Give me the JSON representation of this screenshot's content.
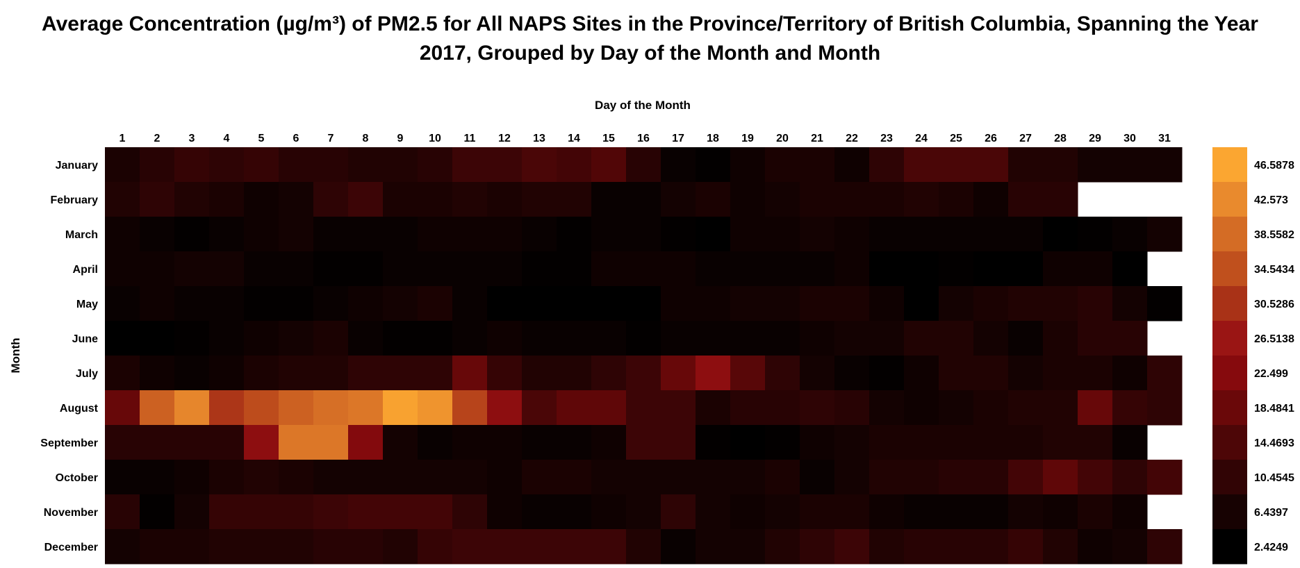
{
  "chart_data": {
    "type": "heatmap",
    "title_line1": "Average Concentration (µg/m³) of PM2.5 for All NAPS Sites in the Province/Territory of British Columbia, Spanning the Year",
    "title_line2": "2017, Grouped by Day of the Month and Month",
    "xlabel": "Day of the Month",
    "ylabel": "Month",
    "x_categories": [
      "1",
      "2",
      "3",
      "4",
      "5",
      "6",
      "7",
      "8",
      "9",
      "10",
      "11",
      "12",
      "13",
      "14",
      "15",
      "16",
      "17",
      "18",
      "19",
      "20",
      "21",
      "22",
      "23",
      "24",
      "25",
      "26",
      "27",
      "28",
      "29",
      "30",
      "31"
    ],
    "y_categories": [
      "January",
      "February",
      "March",
      "April",
      "May",
      "June",
      "July",
      "August",
      "September",
      "October",
      "November",
      "December"
    ],
    "vmin": 2.4249,
    "vmax": 46.5878,
    "colorbar_ticks": [
      "46.5878",
      "42.573",
      "38.5582",
      "34.5434",
      "30.5286",
      "26.5138",
      "22.499",
      "18.4841",
      "14.4693",
      "10.4545",
      "6.4397",
      "2.4249"
    ],
    "colorbar_colors": [
      "#fba631",
      "#e98a2d",
      "#d46c25",
      "#c0501d",
      "#a93217",
      "#9a1514",
      "#860a0d",
      "#6a0809",
      "#4d0607",
      "#310405",
      "#170202",
      "#000000"
    ],
    "values": [
      [
        7,
        9,
        11,
        10,
        11,
        9,
        9,
        8,
        8,
        9,
        12,
        12,
        14,
        13,
        15,
        9,
        4,
        3,
        5,
        7,
        7,
        5,
        10,
        14,
        14,
        14,
        8,
        8,
        6,
        6,
        6
      ],
      [
        8,
        10,
        8,
        7,
        5,
        6,
        10,
        12,
        7,
        7,
        8,
        7,
        8,
        8,
        4,
        4,
        6,
        7,
        5,
        6,
        7,
        7,
        7,
        8,
        7,
        5,
        9,
        9,
        null,
        null,
        null
      ],
      [
        5,
        4,
        3,
        4,
        5,
        6,
        4,
        4,
        4,
        5,
        5,
        5,
        4,
        3,
        4,
        4,
        3,
        2,
        5,
        5,
        6,
        5,
        4,
        4,
        4,
        4,
        4,
        2,
        3,
        4,
        6
      ],
      [
        5,
        5,
        6,
        6,
        4,
        4,
        3,
        3,
        4,
        4,
        4,
        4,
        3,
        3,
        5,
        5,
        5,
        4,
        4,
        4,
        4,
        5,
        2,
        2,
        3,
        2,
        2,
        5,
        5,
        1,
        null
      ],
      [
        4,
        5,
        4,
        4,
        3,
        3,
        4,
        5,
        6,
        7,
        4,
        2,
        2,
        2,
        2,
        2,
        5,
        5,
        6,
        6,
        7,
        7,
        5,
        2,
        6,
        7,
        8,
        8,
        9,
        6,
        3
      ],
      [
        2,
        2,
        3,
        4,
        5,
        6,
        7,
        4,
        3,
        3,
        4,
        5,
        4,
        4,
        4,
        3,
        4,
        4,
        4,
        4,
        5,
        6,
        6,
        8,
        8,
        6,
        4,
        7,
        9,
        9,
        null
      ],
      [
        7,
        5,
        4,
        5,
        7,
        8,
        8,
        10,
        10,
        10,
        18,
        11,
        8,
        8,
        10,
        12,
        18,
        24,
        16,
        10,
        6,
        4,
        3,
        5,
        8,
        8,
        6,
        7,
        7,
        5,
        10
      ],
      [
        18,
        37,
        42,
        31,
        34,
        37,
        39,
        40,
        46,
        44,
        33,
        24,
        14,
        17,
        17,
        12,
        12,
        7,
        9,
        9,
        10,
        9,
        6,
        5,
        6,
        7,
        8,
        8,
        18,
        11,
        10
      ],
      [
        9,
        9,
        9,
        9,
        24,
        40,
        40,
        22,
        6,
        4,
        5,
        5,
        4,
        4,
        5,
        12,
        12,
        3,
        2,
        3,
        5,
        6,
        7,
        7,
        7,
        7,
        7,
        8,
        8,
        4,
        null
      ],
      [
        4,
        4,
        5,
        7,
        8,
        7,
        6,
        6,
        6,
        6,
        6,
        5,
        7,
        7,
        6,
        6,
        6,
        6,
        6,
        7,
        4,
        6,
        8,
        8,
        9,
        9,
        13,
        17,
        13,
        10,
        13
      ],
      [
        9,
        3,
        6,
        11,
        11,
        11,
        12,
        13,
        13,
        13,
        10,
        5,
        4,
        4,
        5,
        6,
        10,
        6,
        5,
        6,
        7,
        7,
        5,
        4,
        4,
        4,
        6,
        5,
        7,
        5,
        null
      ],
      [
        6,
        7,
        7,
        8,
        8,
        8,
        9,
        9,
        8,
        11,
        12,
        12,
        12,
        12,
        12,
        8,
        4,
        6,
        6,
        8,
        10,
        12,
        8,
        9,
        9,
        9,
        11,
        8,
        5,
        6,
        10
      ]
    ]
  }
}
